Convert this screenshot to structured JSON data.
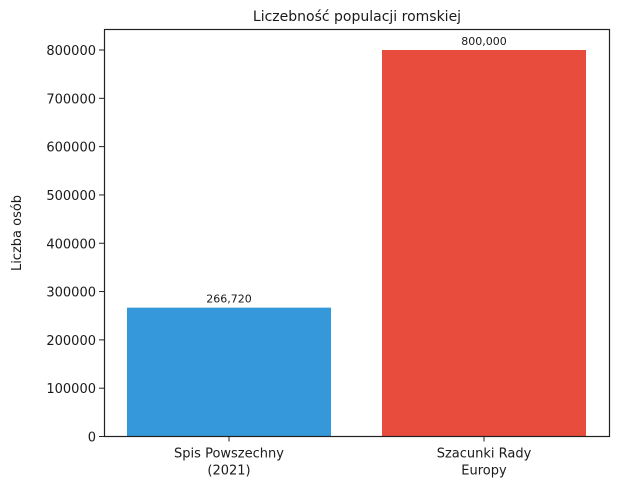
{
  "chart_data": {
    "type": "bar",
    "title": "Liczebność populacji romskiej",
    "xlabel": "",
    "ylabel": "Liczba osób",
    "categories": [
      [
        "Spis Powszechny",
        "(2021)"
      ],
      [
        "Szacunki Rady",
        "Europy"
      ]
    ],
    "values": [
      266720,
      800000
    ],
    "data_labels": [
      "266,720",
      "800,000"
    ],
    "colors": [
      "#3498db",
      "#e74c3c"
    ],
    "ylim": [
      0,
      800000
    ],
    "yticks": [
      0,
      100000,
      200000,
      300000,
      400000,
      500000,
      600000,
      700000,
      800000
    ],
    "ytick_labels": [
      "0",
      "100000",
      "200000",
      "300000",
      "400000",
      "500000",
      "600000",
      "700000",
      "800000"
    ],
    "grid": false,
    "legend": "none"
  }
}
